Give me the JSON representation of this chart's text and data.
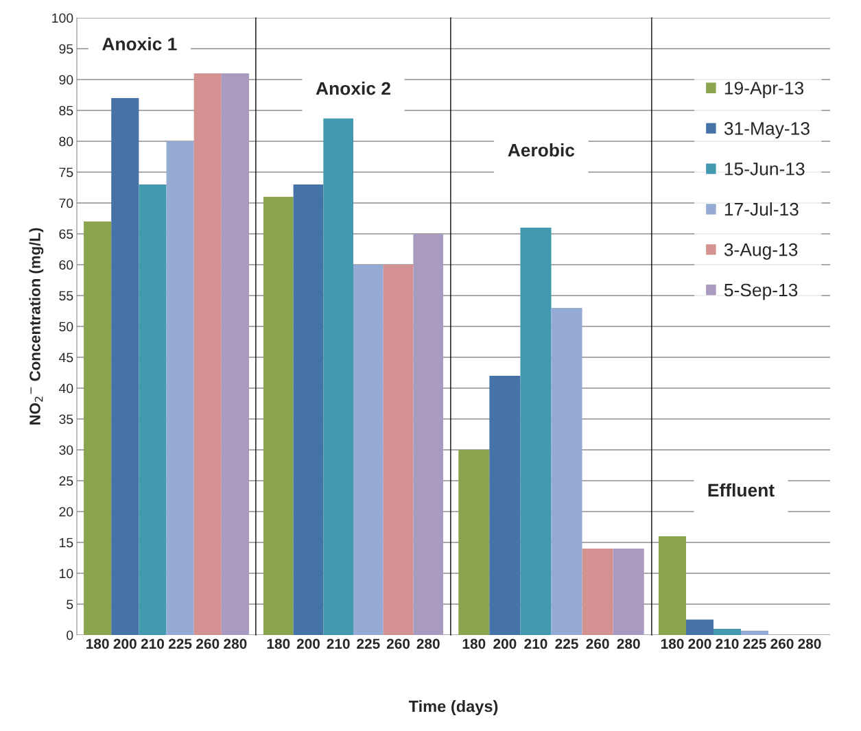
{
  "chart_data": [
    {
      "type": "bar",
      "title": "Anoxic 1",
      "ylabel": "NO$_{2}$$^{−}$ Concentration (mg/L)",
      "stacked": true,
      "categories": [
        "180",
        "200",
        "210",
        "225",
        "260",
        "280"
      ],
      "ylim": [
        0,
        100
      ],
      "yticks": [
        0,
        5,
        10,
        15,
        20,
        25,
        30,
        35,
        40,
        45,
        50,
        55,
        60,
        65,
        70,
        75,
        80,
        85,
        90,
        95,
        100
      ],
      "grid": "y",
      "series": [
        {
          "color": "#8ba54f",
          "values": [
            67,
            null,
            null,
            null,
            null,
            null
          ]
        },
        {
          "color": "#4673a7",
          "values": [
            null,
            87,
            null,
            null,
            null,
            null
          ]
        },
        {
          "color": "#4299b0",
          "values": [
            null,
            null,
            73,
            null,
            null,
            null
          ]
        },
        {
          "color": "#95abd3",
          "values": [
            null,
            null,
            null,
            80,
            null,
            null
          ]
        },
        {
          "color": "#d39291",
          "values": [
            null,
            null,
            null,
            null,
            91,
            null
          ]
        },
        {
          "color": "#a99bbf",
          "values": [
            null,
            null,
            null,
            null,
            null,
            91
          ]
        }
      ]
    },
    {
      "type": "bar",
      "title": "Anoxic 2",
      "xlabel": "Time (days)",
      "stacked": true,
      "categories": [
        "180",
        "200",
        "210",
        "225",
        "260",
        "280"
      ],
      "ylim": [
        0,
        100
      ],
      "yticks": [
        0,
        5,
        10,
        15,
        20,
        25,
        30,
        35,
        40,
        45,
        50,
        55,
        60,
        65,
        70,
        75,
        80,
        85,
        90,
        95,
        100
      ],
      "grid": "y",
      "tick_labels": "x",
      "series": [
        {
          "color": "#8ba54f",
          "values": [
            71,
            null,
            null,
            null,
            null,
            null
          ]
        },
        {
          "color": "#4673a7",
          "values": [
            null,
            73,
            null,
            null,
            null,
            null
          ]
        },
        {
          "color": "#4299b0",
          "values": [
            null,
            null,
            83.7,
            null,
            null,
            null
          ]
        },
        {
          "color": "#95abd3",
          "values": [
            null,
            null,
            null,
            60,
            null,
            null
          ]
        },
        {
          "color": "#d39291",
          "values": [
            null,
            null,
            null,
            null,
            60,
            null
          ]
        },
        {
          "color": "#a99bbf",
          "values": [
            null,
            null,
            null,
            null,
            null,
            65
          ]
        }
      ]
    },
    {
      "type": "bar",
      "title": "Aerobic",
      "stacked": true,
      "categories": [
        "180",
        "200",
        "210",
        "225",
        "260",
        "280"
      ],
      "ylim": [
        0,
        100
      ],
      "yticks": [
        0,
        5,
        10,
        15,
        20,
        25,
        30,
        35,
        40,
        45,
        50,
        55,
        60,
        65,
        70,
        75,
        80,
        85,
        90,
        95,
        100
      ],
      "grid": "y",
      "tick_labels": "x",
      "series": [
        {
          "color": "#8ba54f",
          "values": [
            30,
            null,
            null,
            null,
            null,
            null
          ]
        },
        {
          "color": "#4673a7",
          "values": [
            null,
            42,
            null,
            null,
            null,
            null
          ]
        },
        {
          "color": "#4299b0",
          "values": [
            null,
            null,
            66,
            null,
            null,
            null
          ]
        },
        {
          "color": "#95abd3",
          "values": [
            null,
            null,
            null,
            53,
            null,
            null
          ]
        },
        {
          "color": "#d39291",
          "values": [
            null,
            null,
            null,
            null,
            14,
            null
          ]
        },
        {
          "color": "#a99bbf",
          "values": [
            null,
            null,
            null,
            null,
            null,
            14
          ]
        }
      ]
    },
    {
      "type": "bar",
      "title": "Effluent",
      "stacked": true,
      "categories": [
        "180",
        "200",
        "210",
        "225",
        "260",
        "280"
      ],
      "ylim": [
        0,
        100
      ],
      "yticks": [
        0,
        5,
        10,
        15,
        20,
        25,
        30,
        35,
        40,
        45,
        50,
        55,
        60,
        65,
        70,
        75,
        80,
        85,
        90,
        95,
        100
      ],
      "grid": "y",
      "tick_labels": "x",
      "legend": "right",
      "series": [
        {
          "name": "19-Apr-13",
          "color": "#8ba54f",
          "values": [
            16,
            null,
            null,
            null,
            null,
            null
          ]
        },
        {
          "name": "31-May-13",
          "color": "#4673a7",
          "values": [
            null,
            2.5,
            null,
            null,
            null,
            null
          ]
        },
        {
          "name": "15-Jun-13",
          "color": "#4299b0",
          "values": [
            null,
            null,
            1,
            null,
            null,
            null
          ]
        },
        {
          "name": "17-Jul-13",
          "color": "#95abd3",
          "values": [
            null,
            null,
            null,
            0.7,
            null,
            null
          ]
        },
        {
          "name": "3-Aug-13",
          "color": "#d39291",
          "values": [
            null,
            null,
            null,
            null,
            0,
            null
          ]
        },
        {
          "name": "5-Sep-13",
          "color": "#a99bbf",
          "values": [
            null,
            null,
            null,
            null,
            null,
            0
          ]
        }
      ]
    }
  ]
}
